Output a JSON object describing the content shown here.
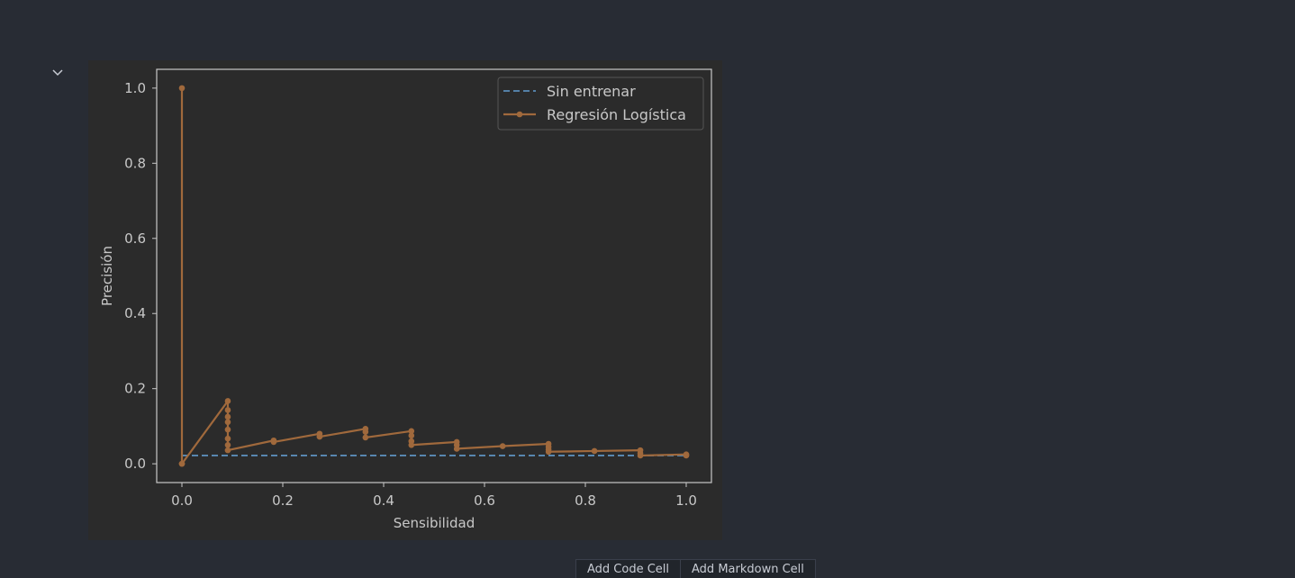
{
  "notebook": {
    "add_code_cell_label": "Add Code Cell",
    "add_markdown_cell_label": "Add Markdown Cell"
  },
  "chart_data": {
    "type": "line",
    "title": "",
    "xlabel": "Sensibilidad",
    "ylabel": "Precisión",
    "xlim": [
      -0.05,
      1.05
    ],
    "ylim": [
      -0.05,
      1.05
    ],
    "xticks": [
      0.0,
      0.2,
      0.4,
      0.6,
      0.8,
      1.0
    ],
    "yticks": [
      0.0,
      0.2,
      0.4,
      0.6,
      0.8,
      1.0
    ],
    "xtick_labels": [
      "0.0",
      "0.2",
      "0.4",
      "0.6",
      "0.8",
      "1.0"
    ],
    "ytick_labels": [
      "0.0",
      "0.2",
      "0.4",
      "0.6",
      "0.8",
      "1.0"
    ],
    "grid": false,
    "legend_position": "top-right",
    "background_color": "#2b2b2b",
    "axes_color": "#c8c8c8",
    "series": [
      {
        "name": "Sin entrenar",
        "color": "#5b8db8",
        "style": "dashed",
        "markers": false,
        "x": [
          0.0,
          1.0
        ],
        "y": [
          0.022,
          0.022
        ]
      },
      {
        "name": "Regresión Logística",
        "color": "#a0693c",
        "style": "solid",
        "markers": true,
        "x": [
          0.0,
          0.0,
          0.0,
          0.091,
          0.091,
          0.091,
          0.091,
          0.091,
          0.091,
          0.091,
          0.091,
          0.182,
          0.182,
          0.273,
          0.273,
          0.364,
          0.364,
          0.364,
          0.455,
          0.455,
          0.455,
          0.455,
          0.545,
          0.545,
          0.545,
          0.636,
          0.727,
          0.727,
          0.727,
          0.727,
          0.818,
          0.909,
          0.909,
          0.909,
          1.0,
          1.0,
          1.0
        ],
        "y": [
          1.0,
          0.0,
          0.0,
          0.167,
          0.143,
          0.125,
          0.111,
          0.091,
          0.067,
          0.05,
          0.036,
          0.062,
          0.058,
          0.08,
          0.072,
          0.093,
          0.085,
          0.07,
          0.087,
          0.075,
          0.06,
          0.05,
          0.058,
          0.05,
          0.04,
          0.047,
          0.053,
          0.045,
          0.038,
          0.032,
          0.034,
          0.036,
          0.028,
          0.022,
          0.025,
          0.023,
          0.022
        ]
      }
    ]
  }
}
